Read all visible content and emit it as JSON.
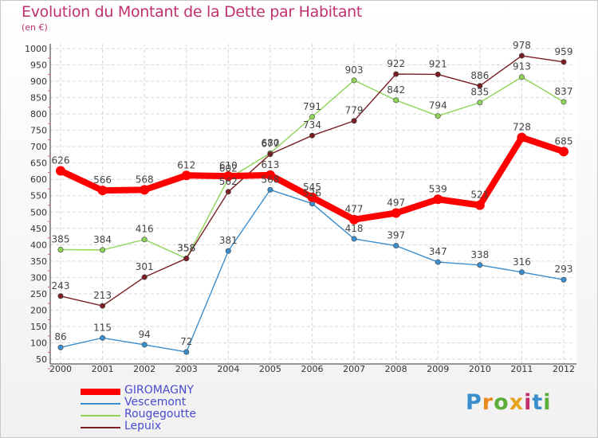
{
  "header": {
    "title": "Evolution du Montant de la Dette par Habitant",
    "unit": "(en €)"
  },
  "brand": {
    "text": "Proxiti"
  },
  "chart_data": {
    "type": "line",
    "title": "Evolution du Montant de la Dette par Habitant",
    "ylabel": "(en €)",
    "xlabel": "",
    "x": [
      "2000",
      "2001",
      "2002",
      "2003",
      "2004",
      "2005",
      "2006",
      "2007",
      "2008",
      "2009",
      "2010",
      "2011",
      "2012"
    ],
    "ylim": [
      50,
      1000
    ],
    "yticks": [
      50,
      100,
      150,
      200,
      250,
      300,
      350,
      400,
      450,
      500,
      550,
      600,
      650,
      700,
      750,
      800,
      850,
      900,
      950,
      1000
    ],
    "grid": true,
    "legend_position": "bottom-left",
    "series": [
      {
        "name": "GIROMAGNY",
        "color": "#ff0000",
        "values": [
          626,
          566,
          568,
          612,
          610,
          613,
          545,
          477,
          497,
          539,
          521,
          728,
          685
        ]
      },
      {
        "name": "Vescemont",
        "color": "#3a8ecd",
        "values": [
          86,
          115,
          94,
          72,
          381,
          568,
          526,
          418,
          397,
          347,
          338,
          316,
          293
        ]
      },
      {
        "name": "Rougegoutte",
        "color": "#8ed457",
        "values": [
          385,
          384,
          416,
          358,
          602,
          680,
          791,
          903,
          842,
          794,
          835,
          913,
          837
        ]
      },
      {
        "name": "Lepuix",
        "color": "#7a1e24",
        "values": [
          243,
          213,
          301,
          358,
          562,
          677,
          734,
          779,
          922,
          921,
          886,
          978,
          959
        ]
      }
    ]
  }
}
